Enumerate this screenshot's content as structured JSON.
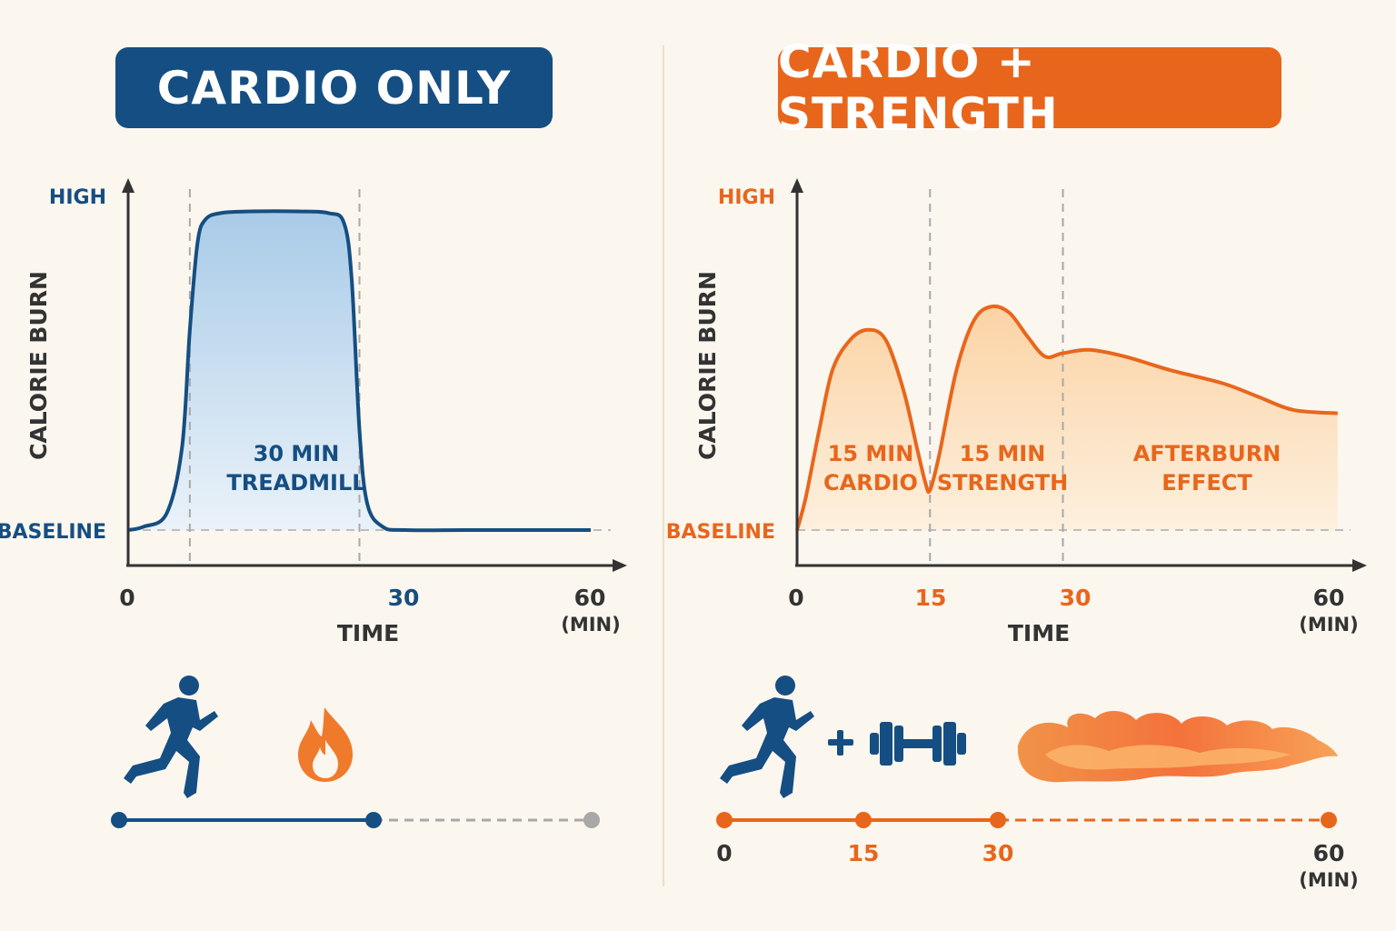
{
  "panels": {
    "left": {
      "title": "CARDIO ONLY",
      "high_label": "HIGH",
      "baseline_label": "BASELINE",
      "ylabel": "CALORIE BURN",
      "xlabel": "TIME",
      "ticks": [
        "0",
        "30",
        "60"
      ],
      "unit": "(MIN)",
      "region_labels": [
        [
          "30 MIN",
          "TREADMILL"
        ]
      ]
    },
    "right": {
      "title": "CARDIO + STRENGTH",
      "high_label": "HIGH",
      "baseline_label": "BASELINE",
      "ylabel": "CALORIE BURN",
      "xlabel": "TIME",
      "ticks": [
        "0",
        "15",
        "30",
        "60"
      ],
      "unit": "(MIN)",
      "region_labels": [
        [
          "15 MIN",
          "CARDIO"
        ],
        [
          "15 MIN",
          "STRENGTH"
        ],
        [
          "AFTERBURN",
          "EFFECT"
        ]
      ],
      "timeline_ticks": [
        "0",
        "15",
        "30",
        "60"
      ],
      "timeline_unit": "(MIN)"
    }
  },
  "colors": {
    "blue": "#154e82",
    "orange": "#e8661c",
    "text": "#333333",
    "grey": "#a8a8a8"
  },
  "icons": {
    "left": [
      "runner-icon",
      "flame-icon"
    ],
    "right": [
      "runner-icon",
      "plus-icon",
      "dumbbell-icon",
      "fire-trail-icon"
    ]
  },
  "chart_data": [
    {
      "type": "area",
      "title": "CARDIO ONLY",
      "xlabel": "TIME",
      "ylabel": "CALORIE BURN",
      "x_unit": "MIN",
      "xlim": [
        0,
        60
      ],
      "y_levels": [
        "BASELINE",
        "HIGH"
      ],
      "ylim": [
        0,
        1
      ],
      "vertical_markers": [
        8,
        30
      ],
      "series": [
        {
          "x": [
            0,
            2,
            5,
            7,
            8,
            9,
            10,
            12,
            16,
            22,
            26,
            28,
            29,
            30,
            31,
            33,
            36,
            45,
            60
          ],
          "y": [
            0,
            0.01,
            0.05,
            0.25,
            0.6,
            0.86,
            0.93,
            0.95,
            0.955,
            0.955,
            0.95,
            0.92,
            0.75,
            0.3,
            0.08,
            0.01,
            0,
            0,
            0
          ]
        }
      ],
      "timeline": {
        "active_end": 30,
        "end": 60
      }
    },
    {
      "type": "area",
      "title": "CARDIO + STRENGTH",
      "xlabel": "TIME",
      "ylabel": "CALORIE BURN",
      "x_unit": "MIN",
      "xlim": [
        0,
        60
      ],
      "y_levels": [
        "BASELINE",
        "HIGH"
      ],
      "ylim": [
        0,
        1
      ],
      "vertical_markers": [
        15,
        30
      ],
      "series": [
        {
          "x": [
            0,
            1,
            2.5,
            4,
            6,
            8,
            10,
            12,
            13.5,
            14.5,
            15,
            16,
            18,
            20,
            22,
            24,
            26,
            28,
            30,
            33,
            37,
            42,
            48,
            52,
            56,
            61
          ],
          "y": [
            0,
            0.1,
            0.3,
            0.48,
            0.57,
            0.6,
            0.57,
            0.42,
            0.25,
            0.14,
            0.12,
            0.22,
            0.48,
            0.63,
            0.67,
            0.65,
            0.58,
            0.52,
            0.53,
            0.54,
            0.52,
            0.48,
            0.44,
            0.4,
            0.36,
            0.35
          ]
        }
      ],
      "timeline": {
        "points": [
          0,
          15,
          30,
          60
        ]
      }
    }
  ]
}
